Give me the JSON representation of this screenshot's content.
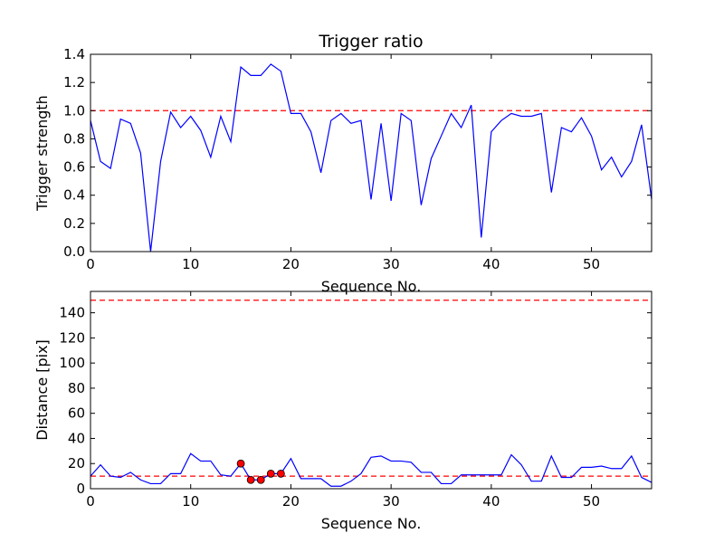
{
  "colors": {
    "line": "#0000ff",
    "threshold": "#ff0000",
    "marker_fill": "#ff0000",
    "marker_edge": "#000000",
    "axes": "#000000",
    "background": "#ffffff"
  },
  "chart_data": [
    {
      "type": "line",
      "title": "Trigger ratio",
      "xlabel": "Sequence No.",
      "ylabel": "Trigger strength",
      "xlim": [
        0,
        56
      ],
      "ylim": [
        0,
        1.4
      ],
      "xticks": [
        0,
        10,
        20,
        30,
        40,
        50
      ],
      "xtick_labels": [
        "0",
        "10",
        "20",
        "30",
        "40",
        "50"
      ],
      "yticks": [
        0,
        0.2,
        0.4,
        0.6,
        0.8,
        1.0,
        1.2,
        1.4
      ],
      "ytick_labels": [
        "0.0",
        "0.2",
        "0.4",
        "0.6",
        "0.8",
        "1.0",
        "1.2",
        "1.4"
      ],
      "threshold": 1.0,
      "grid": false,
      "series": [
        {
          "name": "trigger strength",
          "x": [
            0,
            1,
            2,
            3,
            4,
            5,
            6,
            7,
            8,
            9,
            10,
            11,
            12,
            13,
            14,
            15,
            16,
            17,
            18,
            19,
            20,
            21,
            22,
            23,
            24,
            25,
            26,
            27,
            28,
            29,
            30,
            31,
            32,
            33,
            34,
            35,
            36,
            37,
            38,
            39,
            40,
            41,
            42,
            43,
            44,
            45,
            46,
            47,
            48,
            49,
            50,
            51,
            52,
            53,
            54,
            55,
            56
          ],
          "y": [
            0.93,
            0.64,
            0.59,
            0.94,
            0.91,
            0.7,
            0.0,
            0.64,
            0.99,
            0.88,
            0.96,
            0.86,
            0.67,
            0.96,
            0.78,
            1.31,
            1.25,
            1.25,
            1.33,
            1.28,
            0.98,
            0.98,
            0.85,
            0.56,
            0.93,
            0.98,
            0.91,
            0.93,
            0.37,
            0.91,
            0.36,
            0.98,
            0.93,
            0.33,
            0.66,
            0.82,
            0.98,
            0.88,
            1.04,
            0.1,
            0.85,
            0.93,
            0.98,
            0.96,
            0.96,
            0.98,
            0.42,
            0.88,
            0.85,
            0.95,
            0.82,
            0.58,
            0.67,
            0.53,
            0.64,
            0.9,
            0.37
          ]
        }
      ]
    },
    {
      "type": "line",
      "title": "",
      "xlabel": "Sequence No.",
      "ylabel": "Distance [pix]",
      "xlim": [
        0,
        56
      ],
      "ylim": [
        0,
        157
      ],
      "xticks": [
        0,
        10,
        20,
        30,
        40,
        50
      ],
      "xtick_labels": [
        "0",
        "10",
        "20",
        "30",
        "40",
        "50"
      ],
      "yticks": [
        0,
        20,
        40,
        60,
        80,
        100,
        120,
        140
      ],
      "ytick_labels": [
        "0",
        "20",
        "40",
        "60",
        "80",
        "100",
        "120",
        "140"
      ],
      "thresholds": [
        10,
        150
      ],
      "grid": false,
      "series": [
        {
          "name": "distance",
          "x": [
            0,
            1,
            2,
            3,
            4,
            5,
            6,
            7,
            8,
            9,
            10,
            11,
            12,
            13,
            14,
            15,
            16,
            17,
            18,
            19,
            20,
            21,
            22,
            23,
            24,
            25,
            26,
            27,
            28,
            29,
            30,
            31,
            32,
            33,
            34,
            35,
            36,
            37,
            38,
            39,
            40,
            41,
            42,
            43,
            44,
            45,
            46,
            47,
            48,
            49,
            50,
            51,
            52,
            53,
            54,
            55,
            56
          ],
          "y": [
            10,
            19,
            10,
            9,
            13,
            7,
            4,
            4,
            12,
            12,
            28,
            22,
            22,
            11,
            10,
            20,
            7,
            7,
            12,
            12,
            24,
            8,
            8,
            8,
            2,
            2,
            6,
            12,
            25,
            26,
            22,
            22,
            21,
            13,
            13,
            4,
            4,
            11,
            11,
            11,
            11,
            11,
            27,
            19,
            6,
            6,
            26,
            9,
            9,
            17,
            17,
            18,
            16,
            16,
            26,
            9,
            5
          ]
        },
        {
          "name": "flagged",
          "x": [
            15,
            16,
            17,
            18,
            19
          ],
          "y": [
            20,
            7,
            7,
            12,
            12
          ]
        }
      ]
    }
  ]
}
